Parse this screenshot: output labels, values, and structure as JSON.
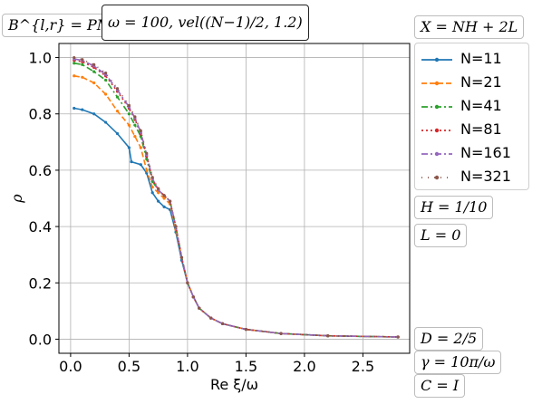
{
  "chart_data": {
    "type": "line",
    "xlabel": "Re ξ/ω",
    "ylabel": "ρ",
    "xlim": [
      -0.1,
      2.9
    ],
    "ylim": [
      -0.05,
      1.05
    ],
    "x_ticks": [
      "0.0",
      "0.5",
      "1.0",
      "1.5",
      "2.0",
      "2.5"
    ],
    "y_ticks": [
      "0.0",
      "0.2",
      "0.4",
      "0.6",
      "0.8",
      "1.0"
    ],
    "grid": true,
    "legend_position": "right",
    "annotations": {
      "boundary": "B^{l,r} = PML",
      "omega": "ω = 100, vel((N−1)/2, 1.2)",
      "x_def": "X = NH + 2L",
      "h": "H = 1/10",
      "l": "L = 0",
      "d": "D = 2/5",
      "gamma": "γ = 10π/ω",
      "c": "C = I"
    },
    "series": [
      {
        "name": "N=11",
        "color": "#1f77b4",
        "style": "solid",
        "points": [
          [
            0.03,
            0.82
          ],
          [
            0.1,
            0.815
          ],
          [
            0.2,
            0.8
          ],
          [
            0.3,
            0.77
          ],
          [
            0.4,
            0.73
          ],
          [
            0.5,
            0.68
          ],
          [
            0.52,
            0.63
          ],
          [
            0.6,
            0.62
          ],
          [
            0.65,
            0.59
          ],
          [
            0.7,
            0.52
          ],
          [
            0.75,
            0.49
          ],
          [
            0.8,
            0.47
          ],
          [
            0.85,
            0.46
          ],
          [
            0.9,
            0.38
          ],
          [
            0.95,
            0.28
          ],
          [
            1.0,
            0.2
          ],
          [
            1.05,
            0.15
          ],
          [
            1.1,
            0.11
          ],
          [
            1.2,
            0.075
          ],
          [
            1.3,
            0.055
          ],
          [
            1.5,
            0.035
          ],
          [
            1.8,
            0.02
          ],
          [
            2.2,
            0.012
          ],
          [
            2.8,
            0.008
          ]
        ]
      },
      {
        "name": "N=21",
        "color": "#ff7f0e",
        "style": "dashed",
        "points": [
          [
            0.03,
            0.935
          ],
          [
            0.1,
            0.93
          ],
          [
            0.2,
            0.91
          ],
          [
            0.3,
            0.87
          ],
          [
            0.4,
            0.81
          ],
          [
            0.5,
            0.76
          ],
          [
            0.55,
            0.72
          ],
          [
            0.6,
            0.68
          ],
          [
            0.65,
            0.6
          ],
          [
            0.7,
            0.54
          ],
          [
            0.75,
            0.52
          ],
          [
            0.8,
            0.5
          ],
          [
            0.85,
            0.48
          ],
          [
            0.9,
            0.39
          ],
          [
            0.95,
            0.29
          ],
          [
            1.0,
            0.2
          ],
          [
            1.05,
            0.15
          ],
          [
            1.1,
            0.11
          ],
          [
            1.2,
            0.075
          ],
          [
            1.3,
            0.055
          ],
          [
            1.5,
            0.035
          ],
          [
            1.8,
            0.02
          ],
          [
            2.2,
            0.012
          ],
          [
            2.8,
            0.008
          ]
        ]
      },
      {
        "name": "N=41",
        "color": "#2ca02c",
        "style": "dashdot",
        "points": [
          [
            0.03,
            0.98
          ],
          [
            0.1,
            0.975
          ],
          [
            0.2,
            0.95
          ],
          [
            0.3,
            0.92
          ],
          [
            0.4,
            0.86
          ],
          [
            0.5,
            0.8
          ],
          [
            0.55,
            0.76
          ],
          [
            0.6,
            0.72
          ],
          [
            0.65,
            0.64
          ],
          [
            0.7,
            0.56
          ],
          [
            0.75,
            0.53
          ],
          [
            0.8,
            0.51
          ],
          [
            0.85,
            0.49
          ],
          [
            0.9,
            0.4
          ],
          [
            0.95,
            0.29
          ],
          [
            1.0,
            0.2
          ],
          [
            1.05,
            0.15
          ],
          [
            1.1,
            0.11
          ],
          [
            1.2,
            0.075
          ],
          [
            1.3,
            0.055
          ],
          [
            1.5,
            0.035
          ],
          [
            1.8,
            0.02
          ],
          [
            2.2,
            0.012
          ],
          [
            2.8,
            0.008
          ]
        ]
      },
      {
        "name": "N=81",
        "color": "#d62728",
        "style": "dotted",
        "points": [
          [
            0.03,
            0.99
          ],
          [
            0.1,
            0.985
          ],
          [
            0.2,
            0.965
          ],
          [
            0.3,
            0.935
          ],
          [
            0.4,
            0.88
          ],
          [
            0.5,
            0.82
          ],
          [
            0.55,
            0.78
          ],
          [
            0.6,
            0.73
          ],
          [
            0.65,
            0.65
          ],
          [
            0.7,
            0.57
          ],
          [
            0.75,
            0.53
          ],
          [
            0.8,
            0.51
          ],
          [
            0.85,
            0.49
          ],
          [
            0.9,
            0.4
          ],
          [
            0.95,
            0.29
          ],
          [
            1.0,
            0.2
          ],
          [
            1.05,
            0.15
          ],
          [
            1.1,
            0.11
          ],
          [
            1.2,
            0.075
          ],
          [
            1.3,
            0.055
          ],
          [
            1.5,
            0.035
          ],
          [
            1.8,
            0.02
          ],
          [
            2.2,
            0.012
          ],
          [
            2.8,
            0.008
          ]
        ]
      },
      {
        "name": "N=161",
        "color": "#9467bd",
        "style": "dashdot",
        "points": [
          [
            0.03,
            0.995
          ],
          [
            0.1,
            0.99
          ],
          [
            0.2,
            0.97
          ],
          [
            0.3,
            0.94
          ],
          [
            0.4,
            0.885
          ],
          [
            0.5,
            0.825
          ],
          [
            0.55,
            0.785
          ],
          [
            0.6,
            0.735
          ],
          [
            0.65,
            0.655
          ],
          [
            0.7,
            0.57
          ],
          [
            0.75,
            0.53
          ],
          [
            0.8,
            0.51
          ],
          [
            0.85,
            0.49
          ],
          [
            0.9,
            0.4
          ],
          [
            0.95,
            0.29
          ],
          [
            1.0,
            0.2
          ],
          [
            1.05,
            0.15
          ],
          [
            1.1,
            0.11
          ],
          [
            1.2,
            0.075
          ],
          [
            1.3,
            0.055
          ],
          [
            1.5,
            0.035
          ],
          [
            1.8,
            0.02
          ],
          [
            2.2,
            0.012
          ],
          [
            2.8,
            0.008
          ]
        ]
      },
      {
        "name": "N=321",
        "color": "#8c564b",
        "style": "dots",
        "points": [
          [
            0.03,
            1.0
          ],
          [
            0.1,
            0.993
          ],
          [
            0.2,
            0.975
          ],
          [
            0.3,
            0.945
          ],
          [
            0.4,
            0.89
          ],
          [
            0.5,
            0.83
          ],
          [
            0.55,
            0.79
          ],
          [
            0.6,
            0.74
          ],
          [
            0.65,
            0.66
          ],
          [
            0.7,
            0.575
          ],
          [
            0.75,
            0.535
          ],
          [
            0.8,
            0.51
          ],
          [
            0.85,
            0.49
          ],
          [
            0.9,
            0.4
          ],
          [
            0.95,
            0.29
          ],
          [
            1.0,
            0.2
          ],
          [
            1.05,
            0.15
          ],
          [
            1.1,
            0.11
          ],
          [
            1.2,
            0.075
          ],
          [
            1.3,
            0.055
          ],
          [
            1.5,
            0.035
          ],
          [
            1.8,
            0.02
          ],
          [
            2.2,
            0.012
          ],
          [
            2.8,
            0.008
          ]
        ]
      }
    ]
  }
}
